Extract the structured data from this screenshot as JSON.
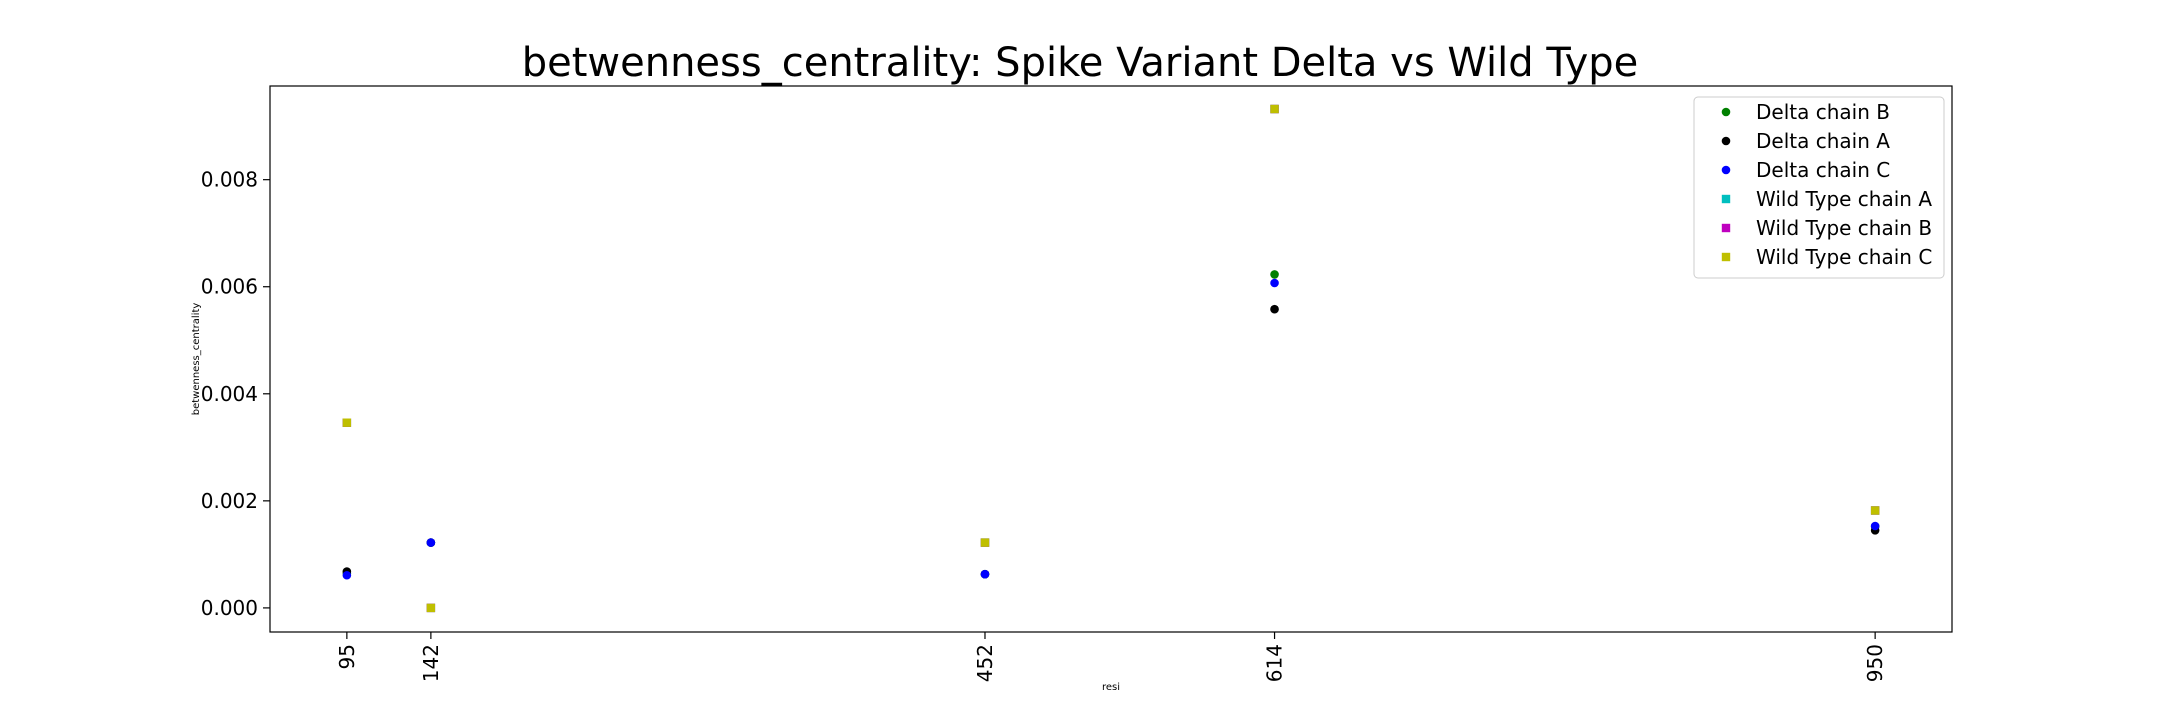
{
  "chart_data": {
    "type": "scatter",
    "title": "betwenness_centrality: Spike Variant Delta vs Wild Type",
    "xlabel": "resi",
    "ylabel": "betwenness_centrality",
    "x_categories": [
      "95",
      "142",
      "452",
      "614",
      "950"
    ],
    "x_positions": [
      95,
      142,
      452,
      614,
      950
    ],
    "xlim": [
      52,
      993
    ],
    "ylim": [
      -0.00045,
      0.00975
    ],
    "yticks": [
      "0.000",
      "0.002",
      "0.004",
      "0.006",
      "0.008"
    ],
    "ytick_values": [
      0.0,
      0.002,
      0.004,
      0.006,
      0.008
    ],
    "grid": false,
    "legend_position": "top-right",
    "series": [
      {
        "name": "Delta chain B",
        "color": "#008000",
        "marker": "circle",
        "x": [
          95,
          142,
          452,
          614,
          950
        ],
        "y": [
          0.00065,
          0.00122,
          0.00063,
          0.00623,
          0.00152
        ]
      },
      {
        "name": "Delta chain A",
        "color": "#000000",
        "marker": "circle",
        "x": [
          95,
          142,
          452,
          614,
          950
        ],
        "y": [
          0.00068,
          0.00122,
          0.00063,
          0.00558,
          0.00145
        ]
      },
      {
        "name": "Delta chain C",
        "color": "#0000ff",
        "marker": "circle",
        "x": [
          95,
          142,
          452,
          614,
          950
        ],
        "y": [
          0.00061,
          0.00122,
          0.00063,
          0.00607,
          0.00153
        ]
      },
      {
        "name": "Wild Type chain A",
        "color": "#00bfbf",
        "marker": "square",
        "x": [
          95,
          142,
          452,
          614,
          950
        ],
        "y": [
          0.00346,
          0.0,
          0.00122,
          0.00932,
          0.00182
        ]
      },
      {
        "name": "Wild Type chain B",
        "color": "#bf00bf",
        "marker": "square",
        "x": [
          95,
          142,
          452,
          614,
          950
        ],
        "y": [
          0.00346,
          0.0,
          0.00122,
          0.00932,
          0.00182
        ]
      },
      {
        "name": "Wild Type chain C",
        "color": "#bfbf00",
        "marker": "square",
        "x": [
          95,
          142,
          452,
          614,
          950
        ],
        "y": [
          0.00346,
          0.0,
          0.00122,
          0.00932,
          0.00182
        ]
      }
    ]
  }
}
